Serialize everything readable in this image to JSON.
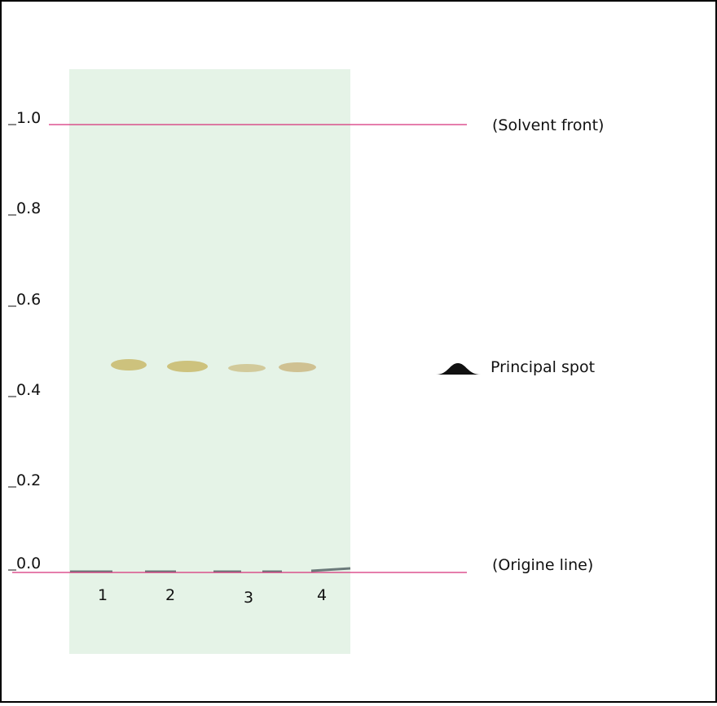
{
  "scale": {
    "labels": [
      "1.0",
      "0.8",
      "0.6",
      "0.4",
      "0.2",
      "0.0"
    ]
  },
  "lanes": {
    "labels": [
      "1",
      "2",
      "3",
      "4"
    ]
  },
  "annotations": {
    "solvent_front": "(Solvent front)",
    "principal_spot": "Principal spot",
    "origin_line": "(Origine line)"
  }
}
